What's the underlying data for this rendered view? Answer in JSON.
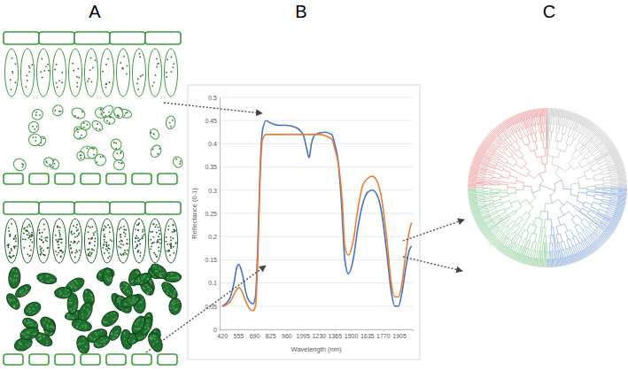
{
  "panel_labels": [
    "A",
    "B",
    "C"
  ],
  "chart_data": {
    "type": "line",
    "y_label": "Reflectance (0-1)",
    "x_label": "Wavelength (nm)",
    "xlim": [
      400,
      2020
    ],
    "xticks": [
      420,
      555,
      690,
      825,
      960,
      1095,
      1230,
      1365,
      1500,
      1635,
      1770,
      1905
    ],
    "ylim": [
      0,
      0.5
    ],
    "yticks": [
      0,
      0.05,
      0.1,
      0.15,
      0.2,
      0.25,
      0.3,
      0.35,
      0.4,
      0.45,
      0.5
    ],
    "grid": true,
    "series": [
      {
        "color": "#4472c4",
        "x": [
          420,
          450,
          490,
          520,
          545,
          560,
          590,
          620,
          650,
          680,
          700,
          720,
          740,
          760,
          790,
          825,
          900,
          960,
          1040,
          1100,
          1130,
          1150,
          1170,
          1200,
          1280,
          1340,
          1365,
          1390,
          1420,
          1450,
          1480,
          1520,
          1560,
          1600,
          1640,
          1680,
          1720,
          1760,
          1800,
          1840,
          1870,
          1900,
          1930,
          1960,
          1990,
          2010
        ],
        "values": [
          0.05,
          0.055,
          0.07,
          0.1,
          0.135,
          0.14,
          0.12,
          0.08,
          0.06,
          0.055,
          0.07,
          0.18,
          0.35,
          0.43,
          0.45,
          0.445,
          0.44,
          0.44,
          0.435,
          0.42,
          0.39,
          0.37,
          0.4,
          0.42,
          0.425,
          0.42,
          0.4,
          0.37,
          0.28,
          0.15,
          0.12,
          0.15,
          0.22,
          0.27,
          0.295,
          0.3,
          0.29,
          0.25,
          0.17,
          0.08,
          0.05,
          0.05,
          0.08,
          0.13,
          0.17,
          0.18
        ]
      },
      {
        "color": "#ed7d31",
        "x": [
          420,
          450,
          490,
          520,
          550,
          565,
          590,
          620,
          650,
          680,
          700,
          720,
          740,
          760,
          790,
          825,
          960,
          1100,
          1230,
          1340,
          1365,
          1400,
          1430,
          1450,
          1480,
          1520,
          1560,
          1600,
          1640,
          1680,
          1720,
          1760,
          1800,
          1840,
          1870,
          1900,
          1930,
          1960,
          1990,
          2010
        ],
        "values": [
          0.05,
          0.052,
          0.06,
          0.075,
          0.088,
          0.09,
          0.08,
          0.06,
          0.045,
          0.04,
          0.05,
          0.15,
          0.33,
          0.41,
          0.42,
          0.42,
          0.42,
          0.42,
          0.42,
          0.41,
          0.39,
          0.35,
          0.27,
          0.18,
          0.16,
          0.19,
          0.26,
          0.31,
          0.325,
          0.33,
          0.32,
          0.28,
          0.2,
          0.1,
          0.07,
          0.07,
          0.1,
          0.16,
          0.21,
          0.23
        ]
      }
    ]
  }
}
